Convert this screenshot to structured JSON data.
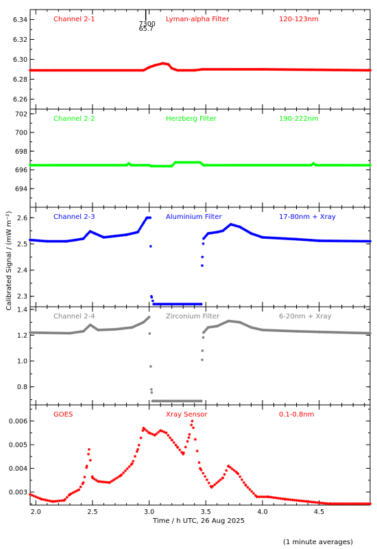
{
  "chart_data": {
    "type": "scatter",
    "ylabel": "Calibrated Signal / (mW m⁻²)",
    "xlabel": "Time / h UTC, 26 Aug 2025",
    "xlim": [
      1.95,
      4.95
    ],
    "x_ticks": [
      "2.0",
      "2.5",
      "3.0",
      "3.5",
      "4.0",
      "4.5"
    ],
    "x_tick_values": [
      2.0,
      2.5,
      3.0,
      3.5,
      4.0,
      4.5
    ],
    "footnote": "(1 minute averages)",
    "marker": {
      "x": 2.97,
      "labels": [
        "7300",
        "65.7"
      ]
    },
    "panels": [
      {
        "channel": "Channel 2-1",
        "filter": "Lyman-alpha Filter",
        "band": "120-123nm",
        "color": "#ff0000",
        "ylim": [
          6.25,
          6.35
        ],
        "y_ticks": [
          "6.26",
          "6.28",
          "6.30",
          "6.32",
          "6.34"
        ],
        "y_tick_values": [
          6.26,
          6.28,
          6.3,
          6.32,
          6.34
        ],
        "series": [
          [
            1.95,
            6.289
          ],
          [
            2.95,
            6.289
          ],
          [
            3.0,
            6.292
          ],
          [
            3.05,
            6.294
          ],
          [
            3.12,
            6.296
          ],
          [
            3.17,
            6.295
          ],
          [
            3.2,
            6.291
          ],
          [
            3.25,
            6.289
          ],
          [
            3.3,
            6.289
          ],
          [
            3.4,
            6.289
          ],
          [
            3.47,
            6.29
          ],
          [
            4.0,
            6.29
          ],
          [
            4.95,
            6.289
          ]
        ]
      },
      {
        "channel": "Channel 2-2",
        "filter": "Herzberg Filter",
        "band": "190-222nm",
        "color": "#00ff00",
        "ylim": [
          692,
          702.5
        ],
        "y_ticks": [
          "694",
          "696",
          "698",
          "700",
          "702"
        ],
        "y_tick_values": [
          694,
          696,
          698,
          700,
          702
        ],
        "series": [
          [
            1.95,
            696.5
          ],
          [
            2.8,
            696.5
          ],
          [
            2.82,
            696.7
          ],
          [
            2.84,
            696.5
          ],
          [
            3.0,
            696.5
          ],
          [
            3.02,
            696.4
          ],
          [
            3.2,
            696.4
          ],
          [
            3.23,
            696.8
          ],
          [
            3.45,
            696.8
          ],
          [
            3.48,
            696.5
          ],
          [
            4.43,
            696.5
          ],
          [
            4.45,
            696.7
          ],
          [
            4.47,
            696.5
          ],
          [
            4.95,
            696.5
          ]
        ]
      },
      {
        "channel": "Channel 2-3",
        "filter": "Aluminium Filter",
        "band": "17-80nm + Xray",
        "color": "#0000ff",
        "ylim": [
          2.26,
          2.64
        ],
        "y_ticks": [
          "2.3",
          "2.4",
          "2.5",
          "2.6"
        ],
        "y_tick_values": [
          2.3,
          2.4,
          2.5,
          2.6
        ],
        "series": [
          [
            1.95,
            2.515
          ],
          [
            2.1,
            2.51
          ],
          [
            2.27,
            2.51
          ],
          [
            2.35,
            2.515
          ],
          [
            2.42,
            2.52
          ],
          [
            2.45,
            2.535
          ],
          [
            2.48,
            2.548
          ],
          [
            2.52,
            2.54
          ],
          [
            2.6,
            2.525
          ],
          [
            2.7,
            2.53
          ],
          [
            2.8,
            2.535
          ],
          [
            2.9,
            2.545
          ],
          [
            2.95,
            2.58
          ],
          [
            2.98,
            2.6
          ],
          [
            3.01,
            2.6
          ],
          [
            3.02,
            2.3
          ],
          [
            3.04,
            2.27
          ],
          [
            3.46,
            2.27
          ],
          [
            3.47,
            2.45
          ],
          [
            3.48,
            2.52
          ],
          [
            3.52,
            2.54
          ],
          [
            3.6,
            2.545
          ],
          [
            3.65,
            2.55
          ],
          [
            3.72,
            2.575
          ],
          [
            3.8,
            2.565
          ],
          [
            3.9,
            2.54
          ],
          [
            4.0,
            2.525
          ],
          [
            4.3,
            2.518
          ],
          [
            4.5,
            2.512
          ],
          [
            4.95,
            2.51
          ]
        ]
      },
      {
        "channel": "Channel 2-4",
        "filter": "Zirconium Filter",
        "band": "6-20nm + Xray",
        "color": "#808080",
        "ylim": [
          0.66,
          1.42
        ],
        "y_ticks": [
          "0.8",
          "1.0",
          "1.2",
          "1.4"
        ],
        "y_tick_values": [
          0.8,
          1.0,
          1.2,
          1.4
        ],
        "series": [
          [
            1.95,
            1.22
          ],
          [
            2.3,
            1.215
          ],
          [
            2.42,
            1.23
          ],
          [
            2.48,
            1.28
          ],
          [
            2.55,
            1.24
          ],
          [
            2.7,
            1.245
          ],
          [
            2.85,
            1.26
          ],
          [
            2.95,
            1.3
          ],
          [
            3.0,
            1.34
          ],
          [
            3.02,
            0.78
          ],
          [
            3.03,
            0.69
          ],
          [
            3.46,
            0.69
          ],
          [
            3.47,
            1.08
          ],
          [
            3.48,
            1.22
          ],
          [
            3.52,
            1.26
          ],
          [
            3.6,
            1.27
          ],
          [
            3.7,
            1.31
          ],
          [
            3.8,
            1.3
          ],
          [
            3.9,
            1.26
          ],
          [
            4.0,
            1.24
          ],
          [
            4.3,
            1.23
          ],
          [
            4.5,
            1.225
          ],
          [
            4.95,
            1.215
          ]
        ]
      },
      {
        "channel": "GOES",
        "filter": "Xray Sensor",
        "band": "0.1-0.8nm",
        "color": "#ff0000",
        "ylim": [
          0.00245,
          0.00668
        ],
        "y_ticks": [
          "0.003",
          "0.004",
          "0.005",
          "0.006"
        ],
        "y_tick_values": [
          0.003,
          0.004,
          0.005,
          0.006
        ],
        "series": [
          [
            1.95,
            0.0029
          ],
          [
            2.05,
            0.0027
          ],
          [
            2.15,
            0.0026
          ],
          [
            2.25,
            0.00265
          ],
          [
            2.3,
            0.0029
          ],
          [
            2.38,
            0.0031
          ],
          [
            2.42,
            0.0034
          ],
          [
            2.45,
            0.0041
          ],
          [
            2.47,
            0.0048
          ],
          [
            2.5,
            0.0036
          ],
          [
            2.55,
            0.00345
          ],
          [
            2.65,
            0.0034
          ],
          [
            2.75,
            0.0037
          ],
          [
            2.85,
            0.0042
          ],
          [
            2.9,
            0.0048
          ],
          [
            2.95,
            0.0057
          ],
          [
            3.0,
            0.0055
          ],
          [
            3.05,
            0.0054
          ],
          [
            3.1,
            0.0056
          ],
          [
            3.15,
            0.0055
          ],
          [
            3.2,
            0.0052
          ],
          [
            3.25,
            0.0049
          ],
          [
            3.3,
            0.0046
          ],
          [
            3.35,
            0.0053
          ],
          [
            3.38,
            0.006
          ],
          [
            3.45,
            0.004
          ],
          [
            3.55,
            0.0032
          ],
          [
            3.65,
            0.0036
          ],
          [
            3.7,
            0.0041
          ],
          [
            3.78,
            0.0038
          ],
          [
            3.85,
            0.0033
          ],
          [
            3.95,
            0.0028
          ],
          [
            4.05,
            0.0028
          ],
          [
            4.2,
            0.0027
          ],
          [
            4.4,
            0.0026
          ],
          [
            4.6,
            0.0025
          ],
          [
            4.95,
            0.0025
          ]
        ]
      }
    ]
  }
}
